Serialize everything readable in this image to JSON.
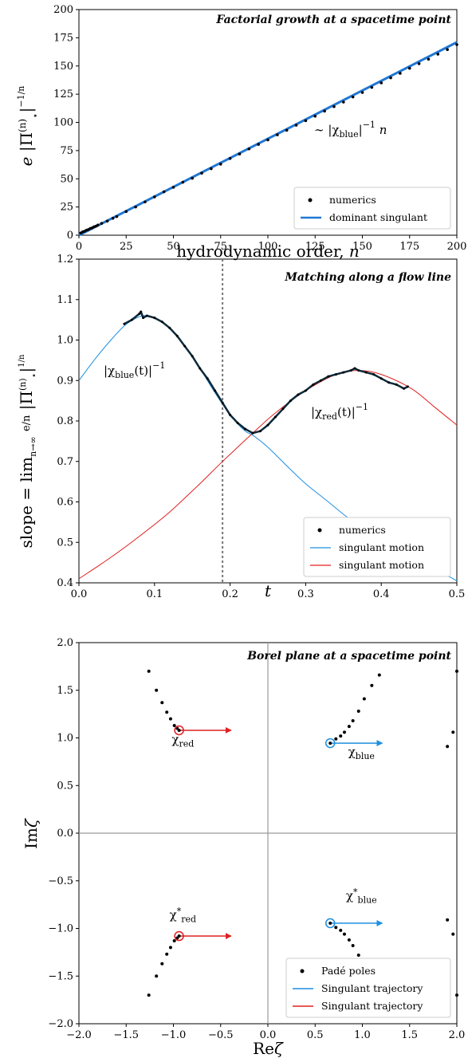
{
  "chart_data": [
    {
      "id": "factorial",
      "type": "scatter",
      "title": "Factorial growth at a spacetime point",
      "xlabel": "hydrodynamic order, n",
      "ylabel": "e |Π⋆^(n)|^(1/n)",
      "xlim": [
        0,
        200
      ],
      "ylim": [
        0,
        200
      ],
      "xticks": [
        0,
        25,
        50,
        75,
        100,
        125,
        150,
        175,
        200
      ],
      "yticks": [
        0,
        25,
        50,
        75,
        100,
        125,
        150,
        175,
        200
      ],
      "annotation": "~ |χblue|^−1 n",
      "legend_position": "lower-right",
      "legend": [
        "numerics",
        "dominant singulant"
      ],
      "series": [
        {
          "name": "numerics",
          "kind": "points",
          "color": "#000000",
          "x": [
            1,
            2,
            3,
            4,
            5,
            6,
            7,
            8,
            9,
            10,
            12,
            15,
            18,
            20,
            25,
            30,
            35,
            40,
            45,
            50,
            55,
            60,
            65,
            70,
            75,
            80,
            85,
            90,
            95,
            100,
            105,
            110,
            115,
            120,
            125,
            130,
            135,
            140,
            145,
            150,
            155,
            160,
            165,
            170,
            175,
            180,
            185,
            190,
            195,
            200
          ],
          "y": [
            2,
            3,
            3.5,
            4.5,
            5,
            6,
            6.5,
            7.5,
            8,
            9,
            10.5,
            12.5,
            15,
            16.5,
            21,
            25,
            29.5,
            34,
            38.5,
            42.5,
            47,
            50.5,
            55,
            59,
            63,
            68,
            72,
            76.5,
            80.5,
            84.5,
            89,
            93,
            97.5,
            101.5,
            105.5,
            110,
            114,
            118,
            122.5,
            126.5,
            131,
            135,
            139.5,
            143.5,
            148,
            152,
            156,
            160.5,
            164.5,
            169
          ]
        },
        {
          "name": "dominant singulant",
          "kind": "line",
          "color": "#1f77d4",
          "x": [
            0,
            200
          ],
          "y": [
            0,
            171
          ]
        }
      ]
    },
    {
      "id": "matching",
      "type": "line",
      "title": "Matching along a flow line",
      "xlabel": "t",
      "ylabel": "slope = lim n→∞ (e/n) |Π⋆^(n)|^(1/n)",
      "xlim": [
        0.0,
        0.5
      ],
      "ylim": [
        0.4,
        1.2
      ],
      "xticks": [
        "0.0",
        "0.1",
        "0.2",
        "0.3",
        "0.4",
        "0.5"
      ],
      "yticks": [
        "0.4",
        "0.5",
        "0.6",
        "0.7",
        "0.8",
        "0.9",
        "1.0",
        "1.1",
        "1.2"
      ],
      "vline_t": 0.19,
      "annotations": [
        "|χblue(t)|^−1",
        "|χred(t)|^−1"
      ],
      "legend_position": "lower-right",
      "legend": [
        "numerics",
        "singulant motion",
        "singulant motion"
      ],
      "series": [
        {
          "name": "singulant motion",
          "color": "#1f8fe0",
          "x": [
            0.0,
            0.02,
            0.04,
            0.06,
            0.08,
            0.09,
            0.1,
            0.12,
            0.14,
            0.16,
            0.18,
            0.2,
            0.22,
            0.23,
            0.25,
            0.28,
            0.3,
            0.33,
            0.36,
            0.4,
            0.44,
            0.48,
            0.5
          ],
          "y": [
            0.9,
            0.95,
            0.995,
            1.035,
            1.058,
            1.06,
            1.055,
            1.03,
            0.985,
            0.93,
            0.87,
            0.815,
            0.775,
            0.765,
            0.735,
            0.68,
            0.645,
            0.6,
            0.555,
            0.505,
            0.46,
            0.425,
            0.405
          ]
        },
        {
          "name": "singulant motion",
          "color": "#e02020",
          "x": [
            0.0,
            0.04,
            0.08,
            0.12,
            0.16,
            0.19,
            0.23,
            0.26,
            0.3,
            0.34,
            0.37,
            0.4,
            0.44,
            0.47,
            0.5
          ],
          "y": [
            0.41,
            0.46,
            0.515,
            0.575,
            0.645,
            0.7,
            0.77,
            0.82,
            0.875,
            0.915,
            0.925,
            0.915,
            0.88,
            0.835,
            0.79
          ]
        },
        {
          "name": "numerics",
          "kind": "points",
          "color": "#000000",
          "x": [
            0.06,
            0.07,
            0.08,
            0.082,
            0.085,
            0.09,
            0.1,
            0.11,
            0.12,
            0.13,
            0.14,
            0.15,
            0.16,
            0.17,
            0.18,
            0.19,
            0.2,
            0.21,
            0.22,
            0.23,
            0.24,
            0.25,
            0.26,
            0.27,
            0.28,
            0.29,
            0.3,
            0.31,
            0.32,
            0.33,
            0.34,
            0.35,
            0.36,
            0.365,
            0.37,
            0.38,
            0.39,
            0.4,
            0.41,
            0.42,
            0.43,
            0.435
          ],
          "y": [
            1.04,
            1.05,
            1.065,
            1.07,
            1.055,
            1.06,
            1.055,
            1.045,
            1.03,
            1.01,
            0.985,
            0.96,
            0.93,
            0.905,
            0.875,
            0.845,
            0.815,
            0.795,
            0.78,
            0.77,
            0.775,
            0.79,
            0.81,
            0.83,
            0.85,
            0.865,
            0.875,
            0.89,
            0.9,
            0.91,
            0.915,
            0.92,
            0.925,
            0.93,
            0.925,
            0.92,
            0.915,
            0.905,
            0.895,
            0.89,
            0.88,
            0.885
          ]
        }
      ]
    },
    {
      "id": "borel",
      "type": "scatter",
      "title": "Borel plane at a spacetime point",
      "xlabel": "Reζ",
      "ylabel": "Imζ",
      "xlim": [
        -2.0,
        2.0
      ],
      "ylim": [
        -2.0,
        2.0
      ],
      "xticks": [
        "−2.0",
        "−1.5",
        "−1.0",
        "−0.5",
        "0.0",
        "0.5",
        "1.0",
        "1.5",
        "2.0"
      ],
      "yticks": [
        "−2.0",
        "−1.5",
        "−1.0",
        "−0.5",
        "0.0",
        "0.5",
        "1.0",
        "1.5",
        "2.0"
      ],
      "labels": {
        "chi_red": "χred",
        "chi_blue": "χblue",
        "chi_red_star": "χ*red",
        "chi_blue_star": "χ*blue"
      },
      "legend_position": "lower-right",
      "legend": [
        "Padé poles",
        "Singulant trajectory",
        "Singulant trajectory"
      ],
      "singulants": [
        {
          "name": "χred",
          "x": -0.94,
          "y": 1.08,
          "color": "#e02020",
          "arrow_dx": 0.55
        },
        {
          "name": "χ*red",
          "x": -0.94,
          "y": -1.08,
          "color": "#e02020",
          "arrow_dx": 0.55
        },
        {
          "name": "χblue",
          "x": 0.66,
          "y": 0.945,
          "color": "#1f8fe0",
          "arrow_dx": 0.55
        },
        {
          "name": "χ*blue",
          "x": 0.66,
          "y": -0.945,
          "color": "#1f8fe0",
          "arrow_dx": 0.55
        }
      ],
      "pade_poles": {
        "x": [
          -1.26,
          -1.18,
          -1.12,
          -1.07,
          -1.03,
          -0.99,
          -0.96,
          -1.26,
          -1.18,
          -1.12,
          -1.07,
          -1.03,
          -0.99,
          -0.96,
          0.72,
          0.77,
          0.81,
          0.86,
          0.9,
          0.96,
          1.02,
          1.1,
          1.18,
          0.72,
          0.77,
          0.81,
          0.86,
          0.9,
          0.96,
          1.02,
          1.1,
          1.18,
          1.9,
          1.96,
          2.0,
          1.9,
          1.96,
          2.0
        ],
        "y": [
          1.7,
          1.5,
          1.37,
          1.27,
          1.2,
          1.13,
          1.1,
          -1.7,
          -1.5,
          -1.37,
          -1.27,
          -1.2,
          -1.13,
          -1.1,
          0.99,
          1.02,
          1.06,
          1.12,
          1.18,
          1.28,
          1.41,
          1.55,
          1.66,
          -0.99,
          -1.02,
          -1.06,
          -1.12,
          -1.18,
          -1.28,
          -1.41,
          -1.55,
          -1.66,
          0.91,
          1.06,
          1.7,
          -0.91,
          -1.06,
          -1.7
        ]
      }
    }
  ]
}
